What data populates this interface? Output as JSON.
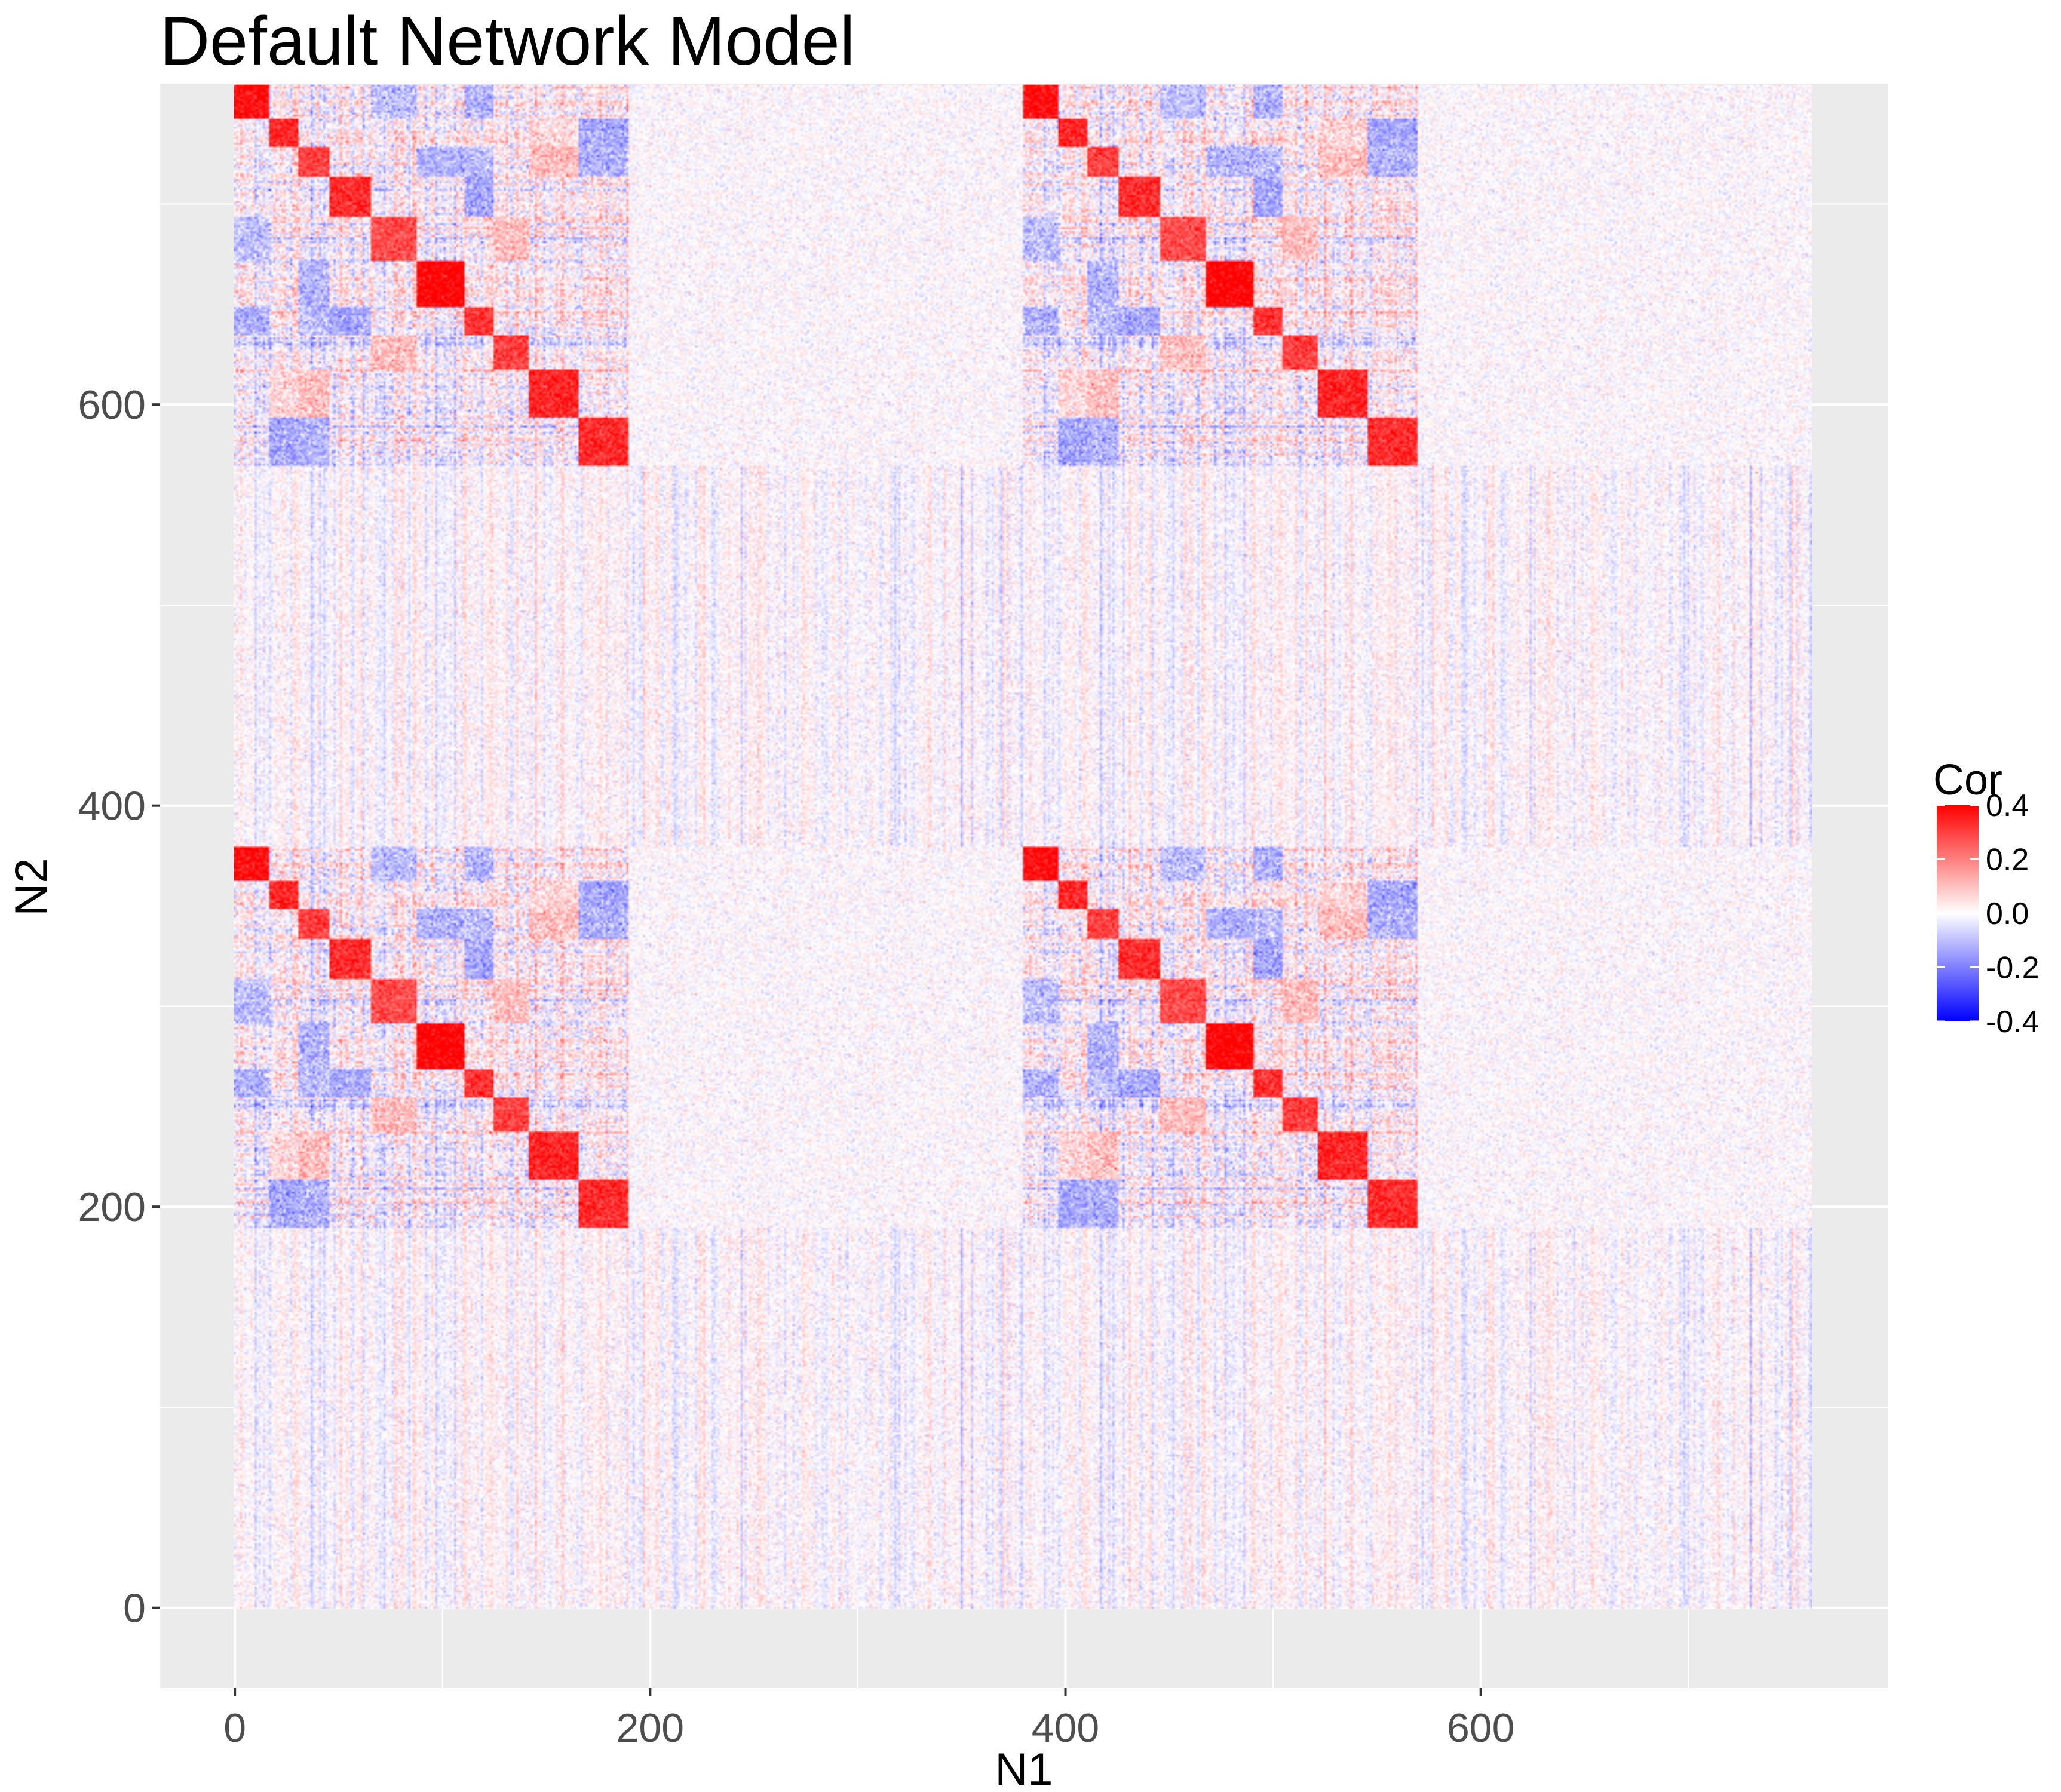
{
  "colors": {
    "panel_background": "#ebebeb",
    "grid_line": "#ffffff",
    "tick_mark": "#333333",
    "tick_label": "#4d4d4d",
    "positive": "#ff0000",
    "zero": "#ffffff",
    "negative": "#0000ff"
  },
  "chart_data": {
    "type": "heatmap",
    "title": "Default Network Model",
    "xlabel": "N1",
    "ylabel": "N2",
    "x_ticks": [
      0,
      200,
      400,
      600
    ],
    "y_ticks": [
      0,
      200,
      400,
      600
    ],
    "x_tick_labels": [
      "0",
      "200",
      "400",
      "600"
    ],
    "y_tick_labels": [
      "0",
      "200",
      "400",
      "600"
    ],
    "xlim": [
      -36,
      796
    ],
    "ylim": [
      -40,
      760
    ],
    "n_cells": 760,
    "grid": true,
    "legend": {
      "title": "Cor",
      "position": "right",
      "min": -0.4,
      "max": 0.4,
      "ticks": [
        0.4,
        0.2,
        0.0,
        -0.2,
        -0.4
      ],
      "tick_labels": [
        "0.4",
        "0.2",
        "0.0",
        "-0.2",
        "-0.4"
      ]
    },
    "structured_index_range": [
      0,
      190
    ],
    "background_noise_sd": 0.03,
    "block_groups": [
      {
        "x_offset": 0,
        "y_offset": 570
      },
      {
        "x_offset": 380,
        "y_offset": 570
      },
      {
        "x_offset": 0,
        "y_offset": 190
      },
      {
        "x_offset": 380,
        "y_offset": 190
      }
    ],
    "diagonal_blocks": [
      {
        "block": 1,
        "start": 0,
        "end": 17,
        "cor": 0.38
      },
      {
        "block": 2,
        "start": 17,
        "end": 31,
        "cor": 0.34
      },
      {
        "block": 3,
        "start": 31,
        "end": 46,
        "cor": 0.3
      },
      {
        "block": 4,
        "start": 46,
        "end": 66,
        "cor": 0.33
      },
      {
        "block": 5,
        "start": 66,
        "end": 88,
        "cor": 0.28
      },
      {
        "block": 6,
        "start": 88,
        "end": 111,
        "cor": 0.4
      },
      {
        "block": 7,
        "start": 111,
        "end": 125,
        "cor": 0.32
      },
      {
        "block": 8,
        "start": 125,
        "end": 142,
        "cor": 0.3
      },
      {
        "block": 9,
        "start": 142,
        "end": 166,
        "cor": 0.34
      },
      {
        "block": 10,
        "start": 166,
        "end": 190,
        "cor": 0.33
      }
    ],
    "off_diagonal_blocks": [
      {
        "x_block": 7,
        "y_block": 1,
        "cor": -0.12
      },
      {
        "x_block": 9,
        "y_block": 2,
        "cor": -0.12
      },
      {
        "x_block": 10,
        "y_block": 2,
        "cor": -0.14
      },
      {
        "x_block": 7,
        "y_block": 3,
        "cor": -0.1
      },
      {
        "x_block": 9,
        "y_block": 3,
        "cor": 0.1
      },
      {
        "x_block": 1,
        "y_block": 5,
        "cor": -0.1
      },
      {
        "x_block": 8,
        "y_block": 5,
        "cor": 0.1
      },
      {
        "x_block": 3,
        "y_block": 6,
        "cor": -0.12
      },
      {
        "x_block": 4,
        "y_block": 7,
        "cor": -0.14
      },
      {
        "x_block": 5,
        "y_block": 8,
        "cor": 0.1
      },
      {
        "x_block": 3,
        "y_block": 10,
        "cor": -0.12
      },
      {
        "x_block": 2,
        "y_block": 9,
        "cor": 0.06
      }
    ]
  }
}
